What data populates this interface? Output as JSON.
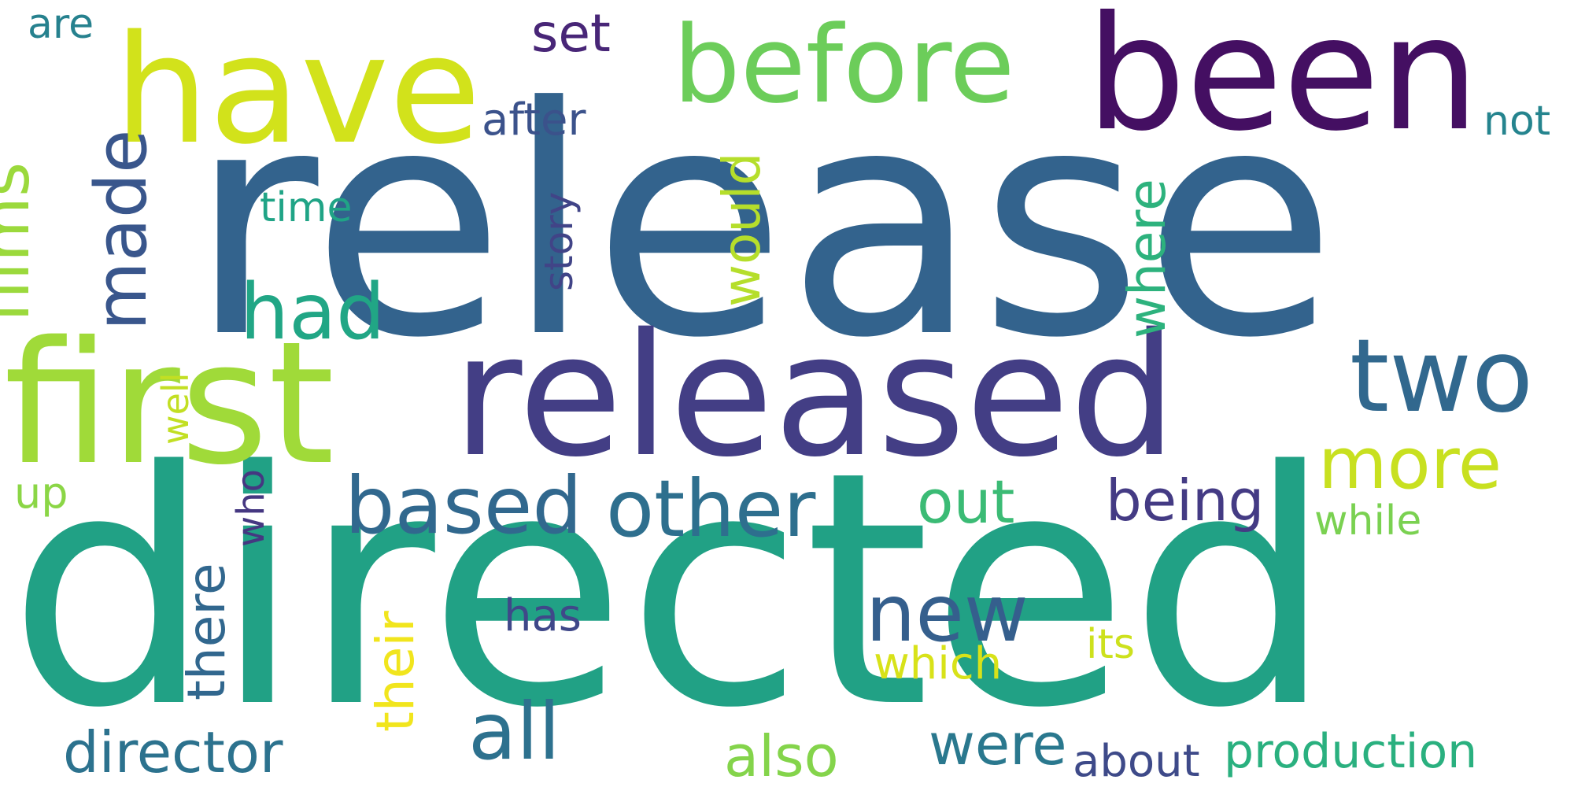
{
  "words": [
    {
      "text": "release",
      "color": "#33638d"
    },
    {
      "text": "directed",
      "color": "#21a185"
    },
    {
      "text": "released",
      "color": "#433e85"
    },
    {
      "text": "first",
      "color": "#a0da39"
    },
    {
      "text": "been",
      "color": "#440f62"
    },
    {
      "text": "have",
      "color": "#d2e21b"
    },
    {
      "text": "before",
      "color": "#6ccd5a"
    },
    {
      "text": "two",
      "color": "#31688e"
    },
    {
      "text": "more",
      "color": "#c8e020"
    },
    {
      "text": "other",
      "color": "#2e6f8e"
    },
    {
      "text": "based",
      "color": "#31688e"
    },
    {
      "text": "films",
      "color": "#9bd93c"
    },
    {
      "text": "made",
      "color": "#39568c"
    },
    {
      "text": "had",
      "color": "#21a685"
    },
    {
      "text": "new",
      "color": "#355f8d"
    },
    {
      "text": "all",
      "color": "#2d718e"
    },
    {
      "text": "director",
      "color": "#2c728e"
    },
    {
      "text": "were",
      "color": "#2a788e"
    },
    {
      "text": "out",
      "color": "#3bbb75"
    },
    {
      "text": "being",
      "color": "#443b84"
    },
    {
      "text": "also",
      "color": "#84d44b"
    },
    {
      "text": "production",
      "color": "#2ab07f"
    },
    {
      "text": "their",
      "color": "#f1e51d"
    },
    {
      "text": "there",
      "color": "#31678e"
    },
    {
      "text": "where",
      "color": "#2db27d"
    },
    {
      "text": "would",
      "color": "#b5de2b"
    },
    {
      "text": "which",
      "color": "#d8e219"
    },
    {
      "text": "about",
      "color": "#3e4a89"
    },
    {
      "text": "while",
      "color": "#7ad151"
    },
    {
      "text": "set",
      "color": "#482677"
    },
    {
      "text": "after",
      "color": "#3b528b"
    },
    {
      "text": "story",
      "color": "#414487"
    },
    {
      "text": "time",
      "color": "#20a486"
    },
    {
      "text": "well",
      "color": "#c2df23"
    },
    {
      "text": "who",
      "color": "#453781"
    },
    {
      "text": "has",
      "color": "#3f4889"
    },
    {
      "text": "its",
      "color": "#cde11d"
    },
    {
      "text": "not",
      "color": "#25848e"
    },
    {
      "text": "are",
      "color": "#26818e"
    },
    {
      "text": "up",
      "color": "#8bd646"
    }
  ]
}
